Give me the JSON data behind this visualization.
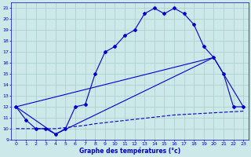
{
  "xlabel": "Graphe des températures (°c)",
  "bg_color": "#cce8e8",
  "grid_color": "#aacccc",
  "line_color": "#0000cc",
  "xlim": [
    -0.5,
    23.5
  ],
  "ylim": [
    9,
    21.5
  ],
  "yticks": [
    9,
    10,
    11,
    12,
    13,
    14,
    15,
    16,
    17,
    18,
    19,
    20,
    21
  ],
  "xticks": [
    0,
    1,
    2,
    3,
    4,
    5,
    6,
    7,
    8,
    9,
    10,
    11,
    12,
    13,
    14,
    15,
    16,
    17,
    18,
    19,
    20,
    21,
    22,
    23
  ],
  "curve1_x": [
    0,
    1,
    2,
    3,
    4,
    5,
    6,
    7,
    8,
    9,
    10,
    11,
    12,
    13,
    14,
    15,
    16,
    17,
    18,
    19,
    20,
    21,
    22,
    23
  ],
  "curve1_y": [
    12,
    10.8,
    10.0,
    10.0,
    9.5,
    10.0,
    12.0,
    12.2,
    15.0,
    17.0,
    17.5,
    18.5,
    19.0,
    20.5,
    21.0,
    20.5,
    21.0,
    20.5,
    19.5,
    17.5,
    16.5,
    15.0,
    12.0,
    12.0
  ],
  "curve2_x": [
    0,
    20
  ],
  "curve2_y": [
    12,
    16.5
  ],
  "curve3_x": [
    0,
    1,
    2,
    3,
    4,
    5,
    6,
    7,
    8,
    9,
    10,
    11,
    12,
    13,
    14,
    15,
    16,
    17,
    18,
    19,
    20,
    21,
    22,
    23
  ],
  "curve3_y": [
    10.0,
    10.0,
    10.0,
    10.0,
    10.0,
    10.1,
    10.2,
    10.3,
    10.45,
    10.55,
    10.65,
    10.75,
    10.85,
    10.95,
    11.05,
    11.15,
    11.25,
    11.3,
    11.35,
    11.4,
    11.45,
    11.5,
    11.55,
    11.6
  ],
  "curve4_x": [
    0,
    4,
    20,
    23
  ],
  "curve4_y": [
    12,
    9.5,
    16.5,
    12.0
  ]
}
